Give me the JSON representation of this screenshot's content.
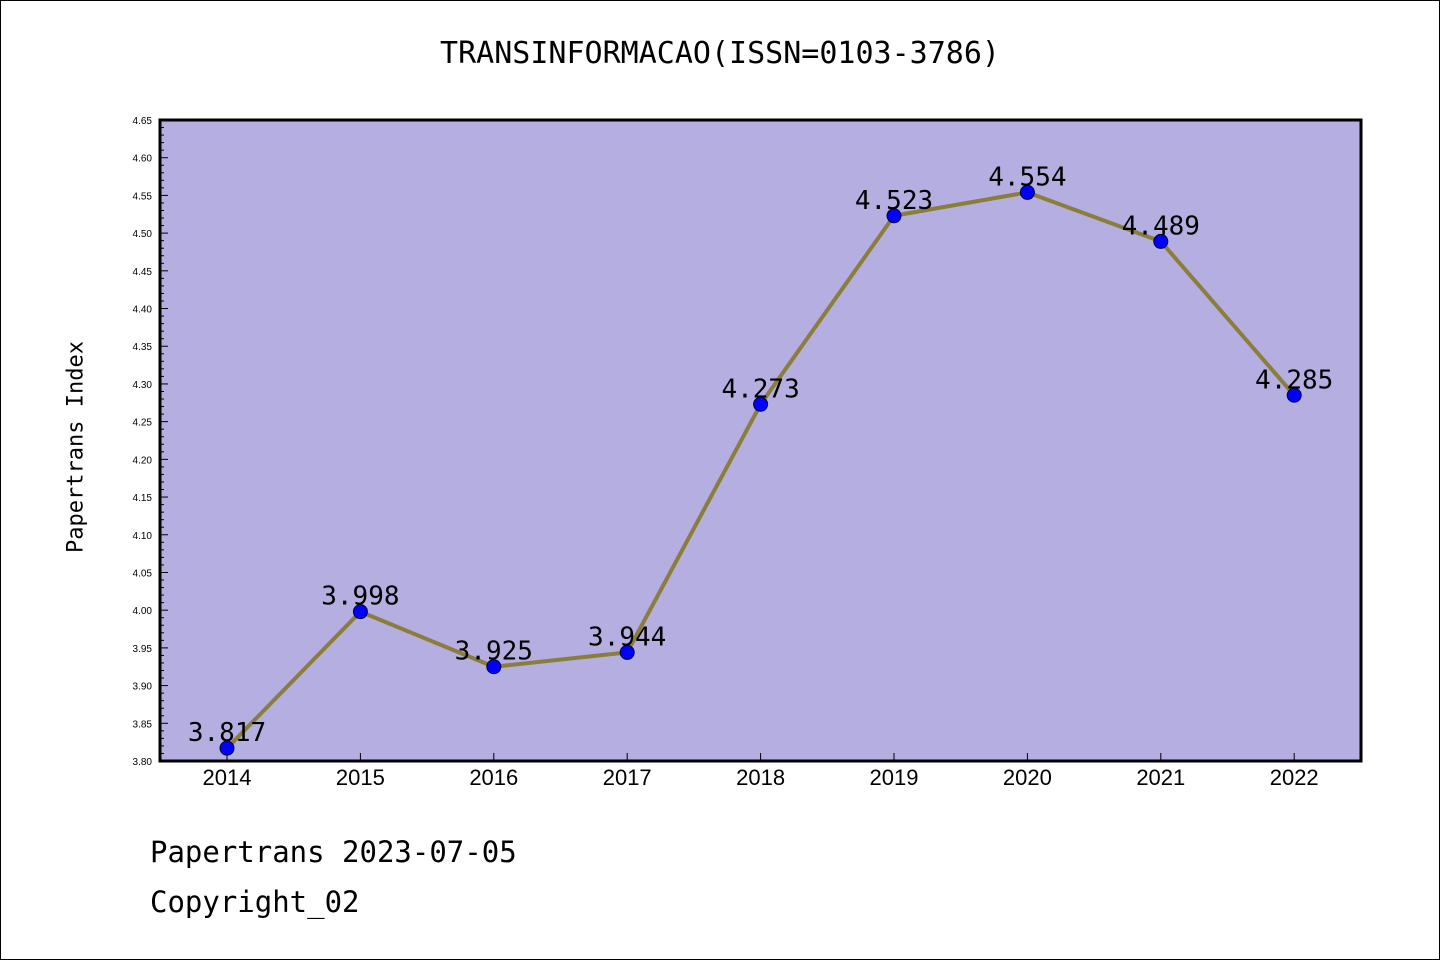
{
  "title": "TRANSINFORMACAO(ISSN=0103-3786)",
  "footer": {
    "line1": "Papertrans 2023-07-05",
    "line2": "Copyright_02"
  },
  "colors": {
    "plot_background": "#b5afe1",
    "line": "#8b7d3a",
    "marker": "#0000ff"
  },
  "chart_data": {
    "type": "line",
    "x": [
      "2014",
      "2015",
      "2016",
      "2017",
      "2018",
      "2019",
      "2020",
      "2021",
      "2022"
    ],
    "values": [
      3.817,
      3.998,
      3.925,
      3.944,
      4.273,
      4.523,
      4.554,
      4.489,
      4.285
    ],
    "data_labels": [
      "3.817",
      "3.998",
      "3.925",
      "3.944",
      "4.273",
      "4.523",
      "4.554",
      "4.489",
      "4.285"
    ],
    "ylabel": "Papertrans Index",
    "xlabel": "",
    "ylim": [
      3.8,
      4.65
    ],
    "yticks": [
      "3.80",
      "3.85",
      "3.90",
      "3.95",
      "4.00",
      "4.05",
      "4.10",
      "4.15",
      "4.20",
      "4.25",
      "4.30",
      "4.35",
      "4.40",
      "4.45",
      "4.50",
      "4.55",
      "4.60",
      "4.65"
    ],
    "grid": false,
    "legend": false
  }
}
